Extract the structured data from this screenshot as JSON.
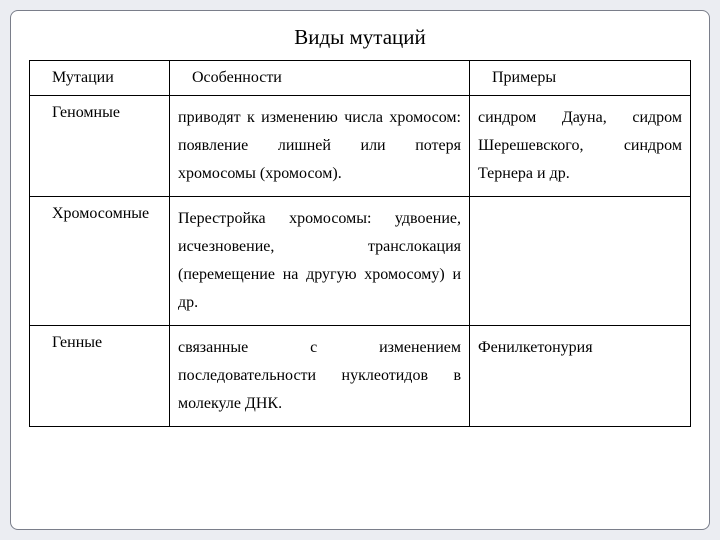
{
  "title": "Виды мутаций",
  "headers": {
    "c1": "Мутации",
    "c2": "Особенности",
    "c3": "Примеры"
  },
  "rows": {
    "genomic": {
      "name": "Геномные",
      "feat": "приводят к изменению числа хромосом: появление лишней или потеря хромосомы (хромосом).",
      "ex": "синдром Дауна, сидром Шерешевского, синдром Тернера и др."
    },
    "chromosomal": {
      "name": "Хромосомные",
      "feat": "Перестройка хромосомы: удвоение, исчезновение, транслокация (перемещение на другую хромосому) и др.",
      "ex": ""
    },
    "gene": {
      "name": "Генные",
      "feat": "связанные с изменением последовательности нуклеотидов в молекуле ДНК.",
      "ex": "Фенилкетонурия"
    }
  },
  "style": {
    "page_bg": "#ebedf2",
    "card_bg": "#ffffff",
    "border_color": "#000000",
    "outer_border": "#7a7e8a",
    "font_family": "Times New Roman",
    "title_fontsize": 21,
    "cell_fontsize": 16,
    "line_height": 1.75
  }
}
